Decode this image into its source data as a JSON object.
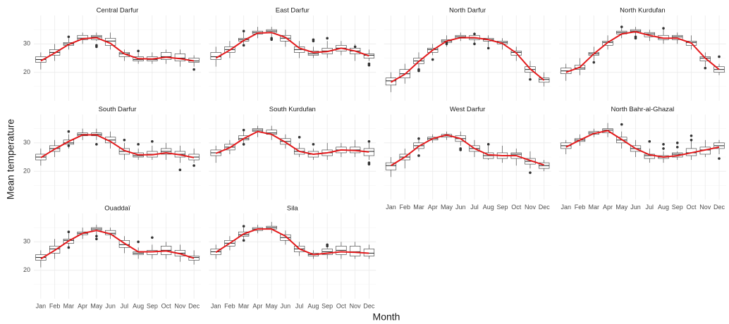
{
  "xlabel": "Month",
  "ylabel": "Mean temperature",
  "chart_data": [
    {
      "type": "box",
      "title": "Central Darfur",
      "ylim": [
        10,
        40
      ],
      "yticks": [
        20,
        30
      ],
      "grid": true,
      "box_color": "#333333",
      "trend_color": "#e31a1c",
      "median": [
        24.5,
        27,
        30,
        32,
        32.5,
        31,
        26.5,
        24.5,
        24.5,
        25.5,
        25,
        24
      ],
      "q1": [
        23.5,
        26,
        29.5,
        31.5,
        31.5,
        29.5,
        25.5,
        24,
        24,
        24.5,
        24,
        23.5
      ],
      "q3": [
        25.5,
        28,
        30.5,
        33,
        33,
        32,
        27,
        25.5,
        25.5,
        27,
        26.5,
        25
      ],
      "low": [
        21,
        24,
        28,
        30,
        31,
        28,
        24,
        23,
        23,
        23,
        22,
        22
      ],
      "high": [
        27,
        30,
        32,
        34,
        34,
        34,
        28,
        27,
        27,
        28,
        28,
        26
      ],
      "outliers": [
        [],
        [],
        [
          32.5
        ],
        [],
        [
          29,
          29.5
        ],
        [],
        [],
        [
          27.5
        ],
        [],
        [],
        [],
        [
          21
        ]
      ],
      "trend": [
        24,
        26.8,
        29.8,
        31.8,
        32.2,
        30.2,
        26.5,
        24.8,
        24.7,
        25.3,
        24.8,
        24
      ]
    },
    {
      "type": "box",
      "title": "East Darfur",
      "ylim": [
        10,
        40
      ],
      "yticks": [
        20,
        30
      ],
      "grid": true,
      "box_color": "#333333",
      "trend_color": "#e31a1c",
      "median": [
        25.5,
        28,
        31.5,
        34,
        34.5,
        32,
        28,
        26.5,
        27.5,
        28.5,
        27.5,
        26
      ],
      "q1": [
        24.5,
        27,
        31,
        33.5,
        34,
        31,
        27,
        26,
        26.5,
        27.5,
        26.5,
        25
      ],
      "q3": [
        27,
        29,
        32,
        34.5,
        35,
        33,
        29,
        27.5,
        28.5,
        29.5,
        28.5,
        26.5
      ],
      "low": [
        22,
        25,
        30,
        32,
        32,
        29,
        25,
        25,
        25,
        26,
        24,
        24
      ],
      "high": [
        29,
        31,
        34,
        36,
        36,
        35,
        31,
        29,
        31,
        31,
        30,
        28
      ],
      "outliers": [
        [],
        [],
        [
          29.5,
          34.5
        ],
        [],
        [
          31.5,
          32
        ],
        [],
        [],
        [
          31,
          31.5
        ],
        [
          32
        ],
        [],
        [
          29
        ],
        [
          23,
          22.5
        ]
      ],
      "trend": [
        25,
        27.8,
        31.2,
        33.8,
        34,
        32.3,
        28.5,
        27,
        27.3,
        28.5,
        27.5,
        25.8
      ]
    },
    {
      "type": "box",
      "title": "North Darfur",
      "ylim": [
        10,
        40
      ],
      "yticks": [
        20,
        30
      ],
      "grid": true,
      "box_color": "#333333",
      "trend_color": "#e31a1c",
      "median": [
        17,
        19.5,
        24,
        28,
        31,
        32.5,
        32,
        31.5,
        30.5,
        27,
        21,
        17.5
      ],
      "q1": [
        15.5,
        18,
        23,
        27,
        30.5,
        32,
        31.5,
        31,
        30,
        26,
        20,
        16.5
      ],
      "q3": [
        18,
        21,
        25,
        28.5,
        31.5,
        33,
        33,
        32,
        31,
        27.5,
        22,
        18
      ],
      "low": [
        13,
        16,
        21,
        26,
        29,
        31,
        30,
        29,
        28,
        24,
        18,
        15
      ],
      "high": [
        20,
        23,
        27,
        30,
        33,
        34,
        34,
        33,
        32,
        29,
        24,
        20
      ],
      "outliers": [
        [],
        [],
        [
          20.5,
          21
        ],
        [
          24.5
        ],
        [
          30,
          30.5
        ],
        [],
        [
          30,
          33.5
        ],
        [
          28.5
        ],
        [],
        [],
        [
          17.5
        ],
        []
      ],
      "trend": [
        16.5,
        19.3,
        23.8,
        27.8,
        31,
        32.2,
        32.2,
        31.5,
        30.2,
        26.8,
        21.2,
        17.2
      ]
    },
    {
      "type": "box",
      "title": "North Kurdufan",
      "ylim": [
        10,
        40
      ],
      "yticks": [
        20,
        30
      ],
      "grid": true,
      "box_color": "#333333",
      "trend_color": "#e31a1c",
      "median": [
        20.5,
        21.5,
        26.5,
        30.5,
        34,
        34.5,
        33.5,
        32,
        32.5,
        30.5,
        25,
        21
      ],
      "q1": [
        19.5,
        21,
        26,
        29.5,
        33.5,
        34,
        32.5,
        31.5,
        31.5,
        29.5,
        24,
        20
      ],
      "q3": [
        21.5,
        22.5,
        27,
        31,
        34.5,
        35,
        34,
        33,
        33,
        31,
        25.5,
        22
      ],
      "low": [
        17,
        19,
        24,
        28,
        32,
        32,
        31,
        30,
        30,
        28,
        22,
        19
      ],
      "high": [
        23,
        25,
        29,
        33,
        36,
        36,
        35,
        35,
        34,
        33,
        27,
        23
      ],
      "outliers": [
        [],
        [],
        [
          23.5
        ],
        [],
        [
          36
        ],
        [
          32,
          32.5
        ],
        [],
        [
          35.5
        ],
        [],
        [],
        [
          21.5
        ],
        [
          25.5
        ]
      ],
      "trend": [
        20,
        21.8,
        26.5,
        30.5,
        33.5,
        34.3,
        33,
        32,
        32,
        30.3,
        25,
        21
      ]
    },
    {
      "type": "box",
      "title": "South Darfur",
      "ylim": [
        10,
        40
      ],
      "yticks": [
        20,
        30
      ],
      "grid": true,
      "box_color": "#333333",
      "trend_color": "#e31a1c",
      "median": [
        25,
        28,
        30,
        33,
        33,
        31,
        27,
        25.5,
        26,
        27,
        26,
        25
      ],
      "q1": [
        24,
        27,
        29.5,
        32.5,
        32.5,
        30,
        26,
        25,
        25,
        26,
        25,
        24
      ],
      "q3": [
        26,
        29,
        31,
        33.5,
        33.5,
        32,
        28,
        26.5,
        27,
        28,
        27,
        26
      ],
      "low": [
        22,
        25,
        28,
        31,
        31,
        28,
        24,
        24,
        24,
        24,
        23,
        23
      ],
      "high": [
        28,
        31,
        33,
        35,
        35,
        34,
        30,
        28,
        29,
        30,
        29,
        28
      ],
      "outliers": [
        [],
        [],
        [
          34,
          29
        ],
        [],
        [
          29.5
        ],
        [],
        [
          31
        ],
        [
          29.5
        ],
        [
          30.5
        ],
        [],
        [
          20.5
        ],
        [
          22
        ]
      ],
      "trend": [
        24.8,
        27.8,
        30.5,
        32.8,
        32.8,
        30.5,
        27.3,
        25.8,
        25.8,
        26.5,
        25.8,
        24.8
      ]
    },
    {
      "type": "box",
      "title": "South Kurdufan",
      "ylim": [
        10,
        40
      ],
      "yticks": [
        20,
        30
      ],
      "grid": true,
      "box_color": "#333333",
      "trend_color": "#e31a1c",
      "median": [
        26.5,
        28.5,
        31.5,
        34.5,
        33.5,
        30.5,
        27,
        26,
        26.5,
        27.5,
        27.5,
        27
      ],
      "q1": [
        25.5,
        27.5,
        31,
        34,
        33,
        29.5,
        26,
        25,
        25.5,
        26.5,
        26.5,
        25.5
      ],
      "q3": [
        27.5,
        29.5,
        32.5,
        35,
        34.5,
        31.5,
        28,
        27,
        27.5,
        28.5,
        28.5,
        28
      ],
      "low": [
        23,
        26,
        29,
        32,
        31,
        28,
        25,
        24,
        24,
        25,
        25,
        24
      ],
      "high": [
        29,
        31,
        34,
        36,
        36,
        33,
        30,
        28,
        30,
        30,
        31,
        30
      ],
      "outliers": [
        [],
        [],
        [
          34.5,
          29.5
        ],
        [],
        [],
        [],
        [
          32
        ],
        [
          29.5
        ],
        [],
        [],
        [],
        [
          30.5,
          23,
          22.5
        ]
      ],
      "trend": [
        26.3,
        28.3,
        31.5,
        34,
        33,
        30.2,
        27,
        26,
        26.5,
        27.5,
        27.3,
        26.8
      ]
    },
    {
      "type": "box",
      "title": "West Darfur",
      "ylim": [
        10,
        40
      ],
      "yticks": [
        20,
        30
      ],
      "grid": true,
      "box_color": "#333333",
      "trend_color": "#e31a1c",
      "categories": [
        "Jan",
        "Feb",
        "Mar",
        "Apr",
        "May",
        "Jun",
        "Jul",
        "Aug",
        "Sep",
        "Oct",
        "Nov",
        "Dec"
      ],
      "median": [
        22,
        25,
        29,
        31.5,
        32.5,
        31.5,
        28,
        25.5,
        25.5,
        26,
        23.5,
        22
      ],
      "q1": [
        20.5,
        24,
        28,
        31,
        32,
        30.5,
        27,
        24.5,
        24.5,
        24.5,
        22.5,
        21
      ],
      "q3": [
        23,
        26,
        30,
        32,
        33,
        32.5,
        29,
        26.5,
        26.5,
        26.5,
        24.5,
        23
      ],
      "low": [
        18,
        21,
        27,
        30,
        31,
        29,
        25,
        24,
        23,
        22,
        21,
        20
      ],
      "high": [
        25,
        28,
        32,
        33,
        34,
        34,
        31,
        29,
        29,
        28,
        27,
        24
      ],
      "outliers": [
        [],
        [],
        [
          31.5,
          25.5
        ],
        [],
        [],
        [
          28,
          27.5
        ],
        [],
        [
          29.5
        ],
        [],
        [],
        [
          19.5
        ],
        []
      ],
      "trend": [
        22,
        25,
        28.8,
        31.5,
        32.8,
        31.5,
        28,
        25.8,
        25.5,
        25.5,
        23.8,
        22.2
      ]
    },
    {
      "type": "box",
      "title": "North Bahr-al-Ghazal",
      "ylim": [
        10,
        40
      ],
      "yticks": [
        20,
        30
      ],
      "grid": true,
      "box_color": "#333333",
      "trend_color": "#e31a1c",
      "categories": [
        "Jan",
        "Feb",
        "Mar",
        "Apr",
        "May",
        "Jun",
        "Jul",
        "Aug",
        "Sep",
        "Oct",
        "Nov",
        "Dec"
      ],
      "median": [
        29,
        31,
        33.5,
        34.5,
        31,
        28,
        25.5,
        25,
        26,
        26.5,
        27.5,
        29
      ],
      "q1": [
        28,
        30.5,
        33,
        33.5,
        30,
        27,
        24.5,
        24.5,
        25,
        25.5,
        26,
        28
      ],
      "q3": [
        30,
        31.5,
        34,
        35,
        32,
        29,
        26,
        25.5,
        26.5,
        28,
        28.5,
        30
      ],
      "low": [
        26,
        29,
        32,
        32,
        28,
        25,
        23,
        23,
        24,
        24,
        25,
        26
      ],
      "high": [
        31,
        33,
        35,
        37,
        34,
        31,
        28,
        27,
        27,
        31,
        31,
        31
      ],
      "outliers": [
        [],
        [],
        [],
        [],
        [
          36.5
        ],
        [],
        [
          30.5
        ],
        [
          29.5,
          28
        ],
        [
          30,
          28.5
        ],
        [
          32.5,
          31
        ],
        [],
        [
          24.5
        ]
      ],
      "trend": [
        28.5,
        31,
        33.3,
        34.3,
        31.2,
        28,
        25.8,
        25,
        25.5,
        26.5,
        27.5,
        28.5
      ]
    },
    {
      "type": "box",
      "title": "Ouaddaï",
      "ylim": [
        10,
        40
      ],
      "yticks": [
        20,
        30
      ],
      "grid": true,
      "box_color": "#333333",
      "trend_color": "#e31a1c",
      "categories": [
        "Jan",
        "Feb",
        "Mar",
        "Apr",
        "May",
        "Jun",
        "Jul",
        "Aug",
        "Sep",
        "Oct",
        "Nov",
        "Dec"
      ],
      "median": [
        24.5,
        27.5,
        30.5,
        33,
        34.5,
        33,
        29,
        26,
        26.5,
        27,
        26,
        24.5
      ],
      "q1": [
        23.5,
        26,
        29.5,
        32.5,
        34,
        32.5,
        28,
        25.5,
        25.5,
        25.5,
        25,
        23.5
      ],
      "q3": [
        25.5,
        28.5,
        31,
        33.5,
        35,
        34,
        30.5,
        26.5,
        27,
        28.5,
        27,
        25
      ],
      "low": [
        21,
        24,
        28,
        31,
        32,
        31,
        26,
        24,
        24,
        24,
        23,
        22
      ],
      "high": [
        27,
        31,
        33,
        35,
        36,
        35,
        32,
        28,
        29,
        30,
        29,
        27
      ],
      "outliers": [
        [],
        [],
        [
          33.5,
          28
        ],
        [],
        [
          31,
          32
        ],
        [],
        [],
        [
          30
        ],
        [
          31.5
        ],
        [],
        [],
        []
      ],
      "trend": [
        24,
        27,
        30.3,
        33,
        34,
        32.8,
        29.5,
        26.5,
        26.5,
        26.8,
        25.8,
        24.2
      ]
    },
    {
      "type": "box",
      "title": "Sila",
      "ylim": [
        10,
        40
      ],
      "yticks": [
        20,
        30
      ],
      "grid": true,
      "box_color": "#333333",
      "trend_color": "#e31a1c",
      "categories": [
        "Jan",
        "Feb",
        "Mar",
        "Apr",
        "May",
        "Jun",
        "Jul",
        "Aug",
        "Sep",
        "Oct",
        "Nov",
        "Dec"
      ],
      "median": [
        26.5,
        29.5,
        32.5,
        34.5,
        35,
        31.5,
        27.5,
        25.5,
        26.5,
        27,
        26.5,
        26
      ],
      "q1": [
        25.5,
        28.5,
        32,
        34,
        34.5,
        30.5,
        26.5,
        25,
        25.5,
        25.5,
        25,
        25
      ],
      "q3": [
        27.5,
        30.5,
        33.5,
        35,
        35.5,
        32.5,
        28.5,
        26,
        27.5,
        28.5,
        28.5,
        27.5
      ],
      "low": [
        24,
        27,
        31,
        33,
        33,
        29,
        25,
        24,
        24,
        24,
        24,
        24
      ],
      "high": [
        29,
        32,
        35,
        36,
        37,
        34,
        30,
        27,
        29,
        30,
        30,
        29
      ],
      "outliers": [
        [],
        [],
        [
          35.5,
          30.5
        ],
        [],
        [],
        [],
        [],
        [],
        [
          29,
          28.5
        ],
        [],
        [],
        []
      ],
      "trend": [
        26.3,
        29.5,
        32.8,
        34.5,
        34.5,
        32,
        27.5,
        25.5,
        26,
        26.5,
        26.3,
        26
      ]
    }
  ]
}
